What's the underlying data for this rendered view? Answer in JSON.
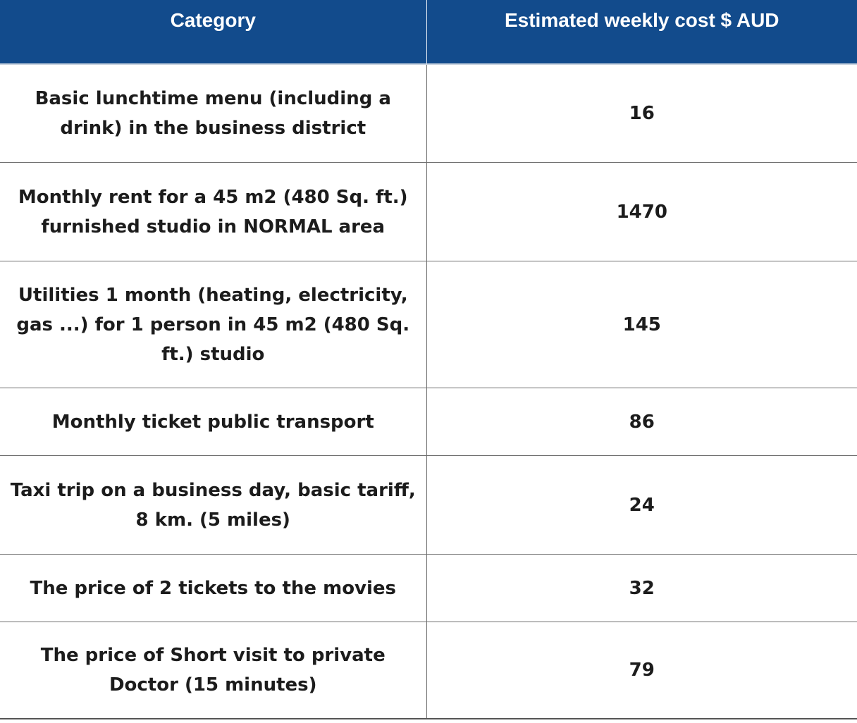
{
  "header": {
    "category": "Category",
    "cost": "Estimated weekly cost $ AUD"
  },
  "rows": [
    {
      "category": "Basic lunchtime menu (including a drink) in the business district",
      "cost": "16"
    },
    {
      "category": "Monthly rent for a 45 m2 (480 Sq. ft.) furnished studio in NORMAL area",
      "cost": "1470"
    },
    {
      "category": "Utilities 1 month (heating, electricity, gas ...) for 1 person in 45 m2 (480 Sq. ft.) studio",
      "cost": "145"
    },
    {
      "category": "Monthly ticket public transport",
      "cost": "86"
    },
    {
      "category": "Taxi trip on a business day, basic tariff, 8 km. (5 miles)",
      "cost": "24"
    },
    {
      "category": "The price of 2 tickets to the movies",
      "cost": "32"
    },
    {
      "category": "The price of Short visit to private Doctor (15 minutes)",
      "cost": "79"
    }
  ],
  "colors": {
    "header_background": "#124b8c",
    "header_text": "#ffffff"
  }
}
